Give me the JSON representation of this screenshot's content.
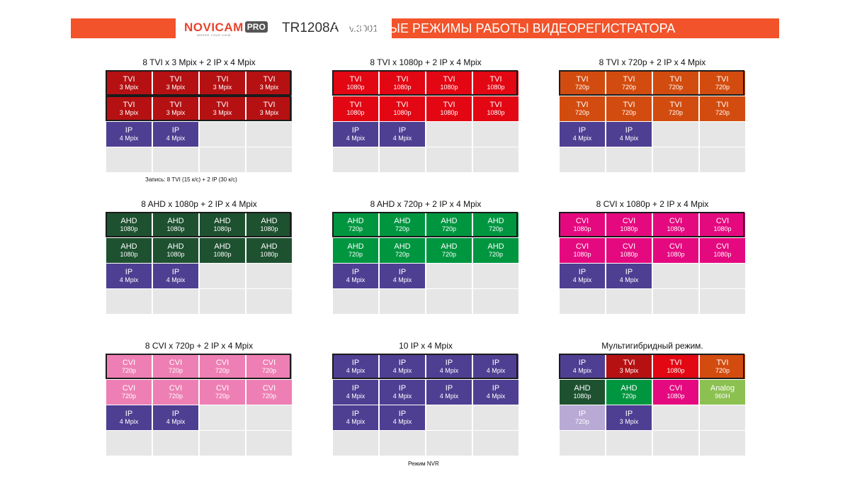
{
  "header": {
    "logo_text": "NOVICAM",
    "logo_pro": "PRO",
    "logo_tagline": "WHERE YOUR VIEW",
    "model": "TR1208A",
    "version": "v.3001",
    "title": "ОСНОВНЫЕ РЕЖИМЫ РАБОТЫ ВИДЕОРЕГИСТРАТОРА"
  },
  "colors": {
    "tvi3": "#b51113",
    "tvi1080": "#e30613",
    "tvi720": "#d34c0f",
    "ahd1080": "#1e5130",
    "ahd720": "#009640",
    "cvi1080": "#e5097f",
    "cvi720": "#ee7fb4",
    "ip": "#4f3f92",
    "ip720": "#b8a9d5",
    "analog": "#8cc152",
    "empty": "#e6e6e6"
  },
  "blocks": [
    {
      "title": "8 TVI x 3 Mpix + 2 IP x 4 Mpix",
      "rows": [
        [
          [
            "TVI",
            "3 Mpix",
            "tvi3"
          ],
          [
            "TVI",
            "3 Mpix",
            "tvi3"
          ],
          [
            "TVI",
            "3 Mpix",
            "tvi3"
          ],
          [
            "TVI",
            "3 Mpix",
            "tvi3"
          ]
        ],
        [
          [
            "TVI",
            "3 Mpix",
            "tvi3"
          ],
          [
            "TVI",
            "3 Mpix",
            "tvi3"
          ],
          [
            "TVI",
            "3 Mpix",
            "tvi3"
          ],
          [
            "TVI",
            "3 Mpix",
            "tvi3"
          ]
        ],
        [
          [
            "IP",
            "4 Mpix",
            "ip"
          ],
          [
            "IP",
            "4 Mpix",
            "ip"
          ],
          null,
          null
        ],
        [
          null,
          null,
          null,
          null
        ]
      ],
      "frames": [
        0,
        1
      ]
    },
    {
      "title": "8 TVI x 1080p + 2 IP x 4 Mpix",
      "rows": [
        [
          [
            "TVI",
            "1080p",
            "tvi1080"
          ],
          [
            "TVI",
            "1080p",
            "tvi1080"
          ],
          [
            "TVI",
            "1080p",
            "tvi1080"
          ],
          [
            "TVI",
            "1080p",
            "tvi1080"
          ]
        ],
        [
          [
            "TVI",
            "1080p",
            "tvi1080"
          ],
          [
            "TVI",
            "1080p",
            "tvi1080"
          ],
          [
            "TVI",
            "1080p",
            "tvi1080"
          ],
          [
            "TVI",
            "1080p",
            "tvi1080"
          ]
        ],
        [
          [
            "IP",
            "4 Mpix",
            "ip"
          ],
          [
            "IP",
            "4 Mpix",
            "ip"
          ],
          null,
          null
        ],
        [
          null,
          null,
          null,
          null
        ]
      ],
      "frames": [
        0
      ]
    },
    {
      "title": "8 TVI x 720p + 2 IP x 4 Mpix",
      "rows": [
        [
          [
            "TVI",
            "720p",
            "tvi720"
          ],
          [
            "TVI",
            "720p",
            "tvi720"
          ],
          [
            "TVI",
            "720p",
            "tvi720"
          ],
          [
            "TVI",
            "720p",
            "tvi720"
          ]
        ],
        [
          [
            "TVI",
            "720p",
            "tvi720"
          ],
          [
            "TVI",
            "720p",
            "tvi720"
          ],
          [
            "TVI",
            "720p",
            "tvi720"
          ],
          [
            "TVI",
            "720p",
            "tvi720"
          ]
        ],
        [
          [
            "IP",
            "4 Mpix",
            "ip"
          ],
          [
            "IP",
            "4 Mpix",
            "ip"
          ],
          null,
          null
        ],
        [
          null,
          null,
          null,
          null
        ]
      ],
      "frames": [
        0
      ]
    },
    {
      "title": "8 AHD x 1080p + 2 IP x 4 Mpix",
      "rows": [
        [
          [
            "AHD",
            "1080p",
            "ahd1080"
          ],
          [
            "AHD",
            "1080p",
            "ahd1080"
          ],
          [
            "AHD",
            "1080p",
            "ahd1080"
          ],
          [
            "AHD",
            "1080p",
            "ahd1080"
          ]
        ],
        [
          [
            "AHD",
            "1080p",
            "ahd1080"
          ],
          [
            "AHD",
            "1080p",
            "ahd1080"
          ],
          [
            "AHD",
            "1080p",
            "ahd1080"
          ],
          [
            "AHD",
            "1080p",
            "ahd1080"
          ]
        ],
        [
          [
            "IP",
            "4 Mpix",
            "ip"
          ],
          [
            "IP",
            "4 Mpix",
            "ip"
          ],
          null,
          null
        ],
        [
          null,
          null,
          null,
          null
        ]
      ],
      "frames": [
        0
      ]
    },
    {
      "title": "8 AHD x 720p + 2 IP x 4 Mpix",
      "rows": [
        [
          [
            "AHD",
            "720p",
            "ahd720"
          ],
          [
            "AHD",
            "720p",
            "ahd720"
          ],
          [
            "AHD",
            "720p",
            "ahd720"
          ],
          [
            "AHD",
            "720p",
            "ahd720"
          ]
        ],
        [
          [
            "AHD",
            "720p",
            "ahd720"
          ],
          [
            "AHD",
            "720p",
            "ahd720"
          ],
          [
            "AHD",
            "720p",
            "ahd720"
          ],
          [
            "AHD",
            "720p",
            "ahd720"
          ]
        ],
        [
          [
            "IP",
            "4 Mpix",
            "ip"
          ],
          [
            "IP",
            "4 Mpix",
            "ip"
          ],
          null,
          null
        ],
        [
          null,
          null,
          null,
          null
        ]
      ],
      "frames": [
        0
      ]
    },
    {
      "title": "8 CVI x 1080p + 2 IP x 4 Mpix",
      "rows": [
        [
          [
            "CVI",
            "1080p",
            "cvi1080"
          ],
          [
            "CVI",
            "1080p",
            "cvi1080"
          ],
          [
            "CVI",
            "1080p",
            "cvi1080"
          ],
          [
            "CVI",
            "1080p",
            "cvi1080"
          ]
        ],
        [
          [
            "CVI",
            "1080p",
            "cvi1080"
          ],
          [
            "CVI",
            "1080p",
            "cvi1080"
          ],
          [
            "CVI",
            "1080p",
            "cvi1080"
          ],
          [
            "CVI",
            "1080p",
            "cvi1080"
          ]
        ],
        [
          [
            "IP",
            "4 Mpix",
            "ip"
          ],
          [
            "IP",
            "4 Mpix",
            "ip"
          ],
          null,
          null
        ],
        [
          null,
          null,
          null,
          null
        ]
      ],
      "frames": [
        0
      ]
    },
    {
      "title": "8 CVI x 720p + 2 IP x 4 Mpix",
      "rows": [
        [
          [
            "CVI",
            "720p",
            "cvi720"
          ],
          [
            "CVI",
            "720p",
            "cvi720"
          ],
          [
            "CVI",
            "720p",
            "cvi720"
          ],
          [
            "CVI",
            "720p",
            "cvi720"
          ]
        ],
        [
          [
            "CVI",
            "720p",
            "cvi720"
          ],
          [
            "CVI",
            "720p",
            "cvi720"
          ],
          [
            "CVI",
            "720p",
            "cvi720"
          ],
          [
            "CVI",
            "720p",
            "cvi720"
          ]
        ],
        [
          [
            "IP",
            "4 Mpix",
            "ip"
          ],
          [
            "IP",
            "4 Mpix",
            "ip"
          ],
          null,
          null
        ],
        [
          null,
          null,
          null,
          null
        ]
      ],
      "frames": [
        0
      ]
    },
    {
      "title": "10 IP x 4 Mpix",
      "rows": [
        [
          [
            "IP",
            "4 Mpix",
            "ip"
          ],
          [
            "IP",
            "4 Mpix",
            "ip"
          ],
          [
            "IP",
            "4 Mpix",
            "ip"
          ],
          [
            "IP",
            "4 Mpix",
            "ip"
          ]
        ],
        [
          [
            "IP",
            "4 Mpix",
            "ip"
          ],
          [
            "IP",
            "4 Mpix",
            "ip"
          ],
          [
            "IP",
            "4 Mpix",
            "ip"
          ],
          [
            "IP",
            "4 Mpix",
            "ip"
          ]
        ],
        [
          [
            "IP",
            "4 Mpix",
            "ip"
          ],
          [
            "IP",
            "4 Mpix",
            "ip"
          ],
          null,
          null
        ],
        [
          null,
          null,
          null,
          null
        ]
      ],
      "frames": [
        0
      ]
    },
    {
      "title": "Мультигибридный режим.",
      "rows": [
        [
          [
            "IP",
            "4 Mpix",
            "ip"
          ],
          [
            "TVI",
            "3 Mpix",
            "tvi3"
          ],
          [
            "TVI",
            "1080p",
            "tvi1080"
          ],
          [
            "TVI",
            "720p",
            "tvi720"
          ]
        ],
        [
          [
            "AHD",
            "1080p",
            "ahd1080"
          ],
          [
            "AHD",
            "720p",
            "ahd720"
          ],
          [
            "CVI",
            "1080p",
            "cvi1080"
          ],
          [
            "Analog",
            "960H",
            "analog"
          ]
        ],
        [
          [
            "IP",
            "720p",
            "ip720"
          ],
          [
            "IP",
            "3 Mpix",
            "ip"
          ],
          null,
          null
        ],
        [
          null,
          null,
          null,
          null
        ]
      ],
      "frames": [
        0
      ]
    }
  ],
  "notes": {
    "record": "Запись: 8 TVI (15 к/с) + 2 IP (30 к/с)",
    "nvr": "Режим NVR"
  }
}
